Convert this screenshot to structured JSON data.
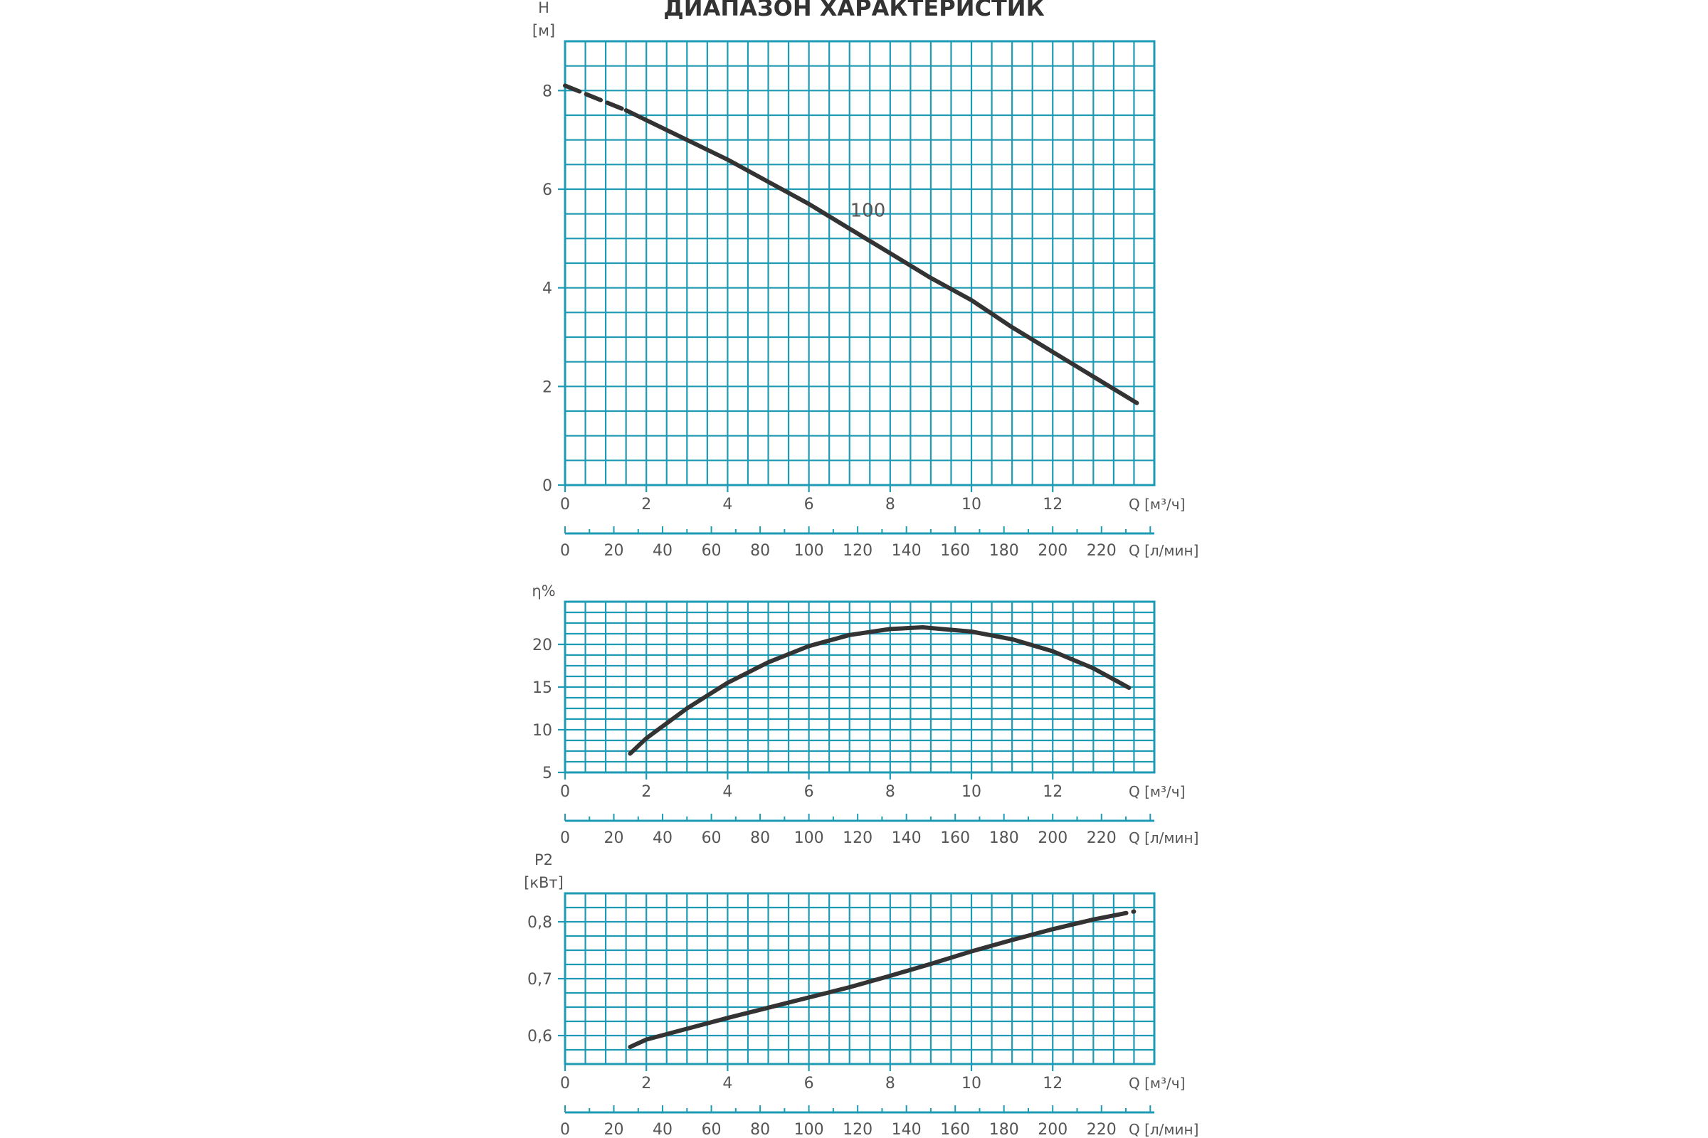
{
  "title": "ДИАПАЗОН ХАРАКТЕРИСТИК",
  "colors": {
    "grid": "#1e9bb4",
    "curve": "#333333",
    "text": "#555555"
  },
  "chart_data": [
    {
      "type": "line",
      "ylabel_line1": "H",
      "ylabel_line2": "[м]",
      "ylim": [
        0,
        9
      ],
      "yticks": [
        0,
        2,
        4,
        6,
        8
      ],
      "ytick_labels": [
        "0",
        "2",
        "4",
        "6",
        "8"
      ],
      "xlim": [
        0,
        14.5
      ],
      "xticks": [
        0,
        2,
        4,
        6,
        8,
        10,
        12
      ],
      "xtick_labels": [
        "0",
        "2",
        "4",
        "6",
        "8",
        "10",
        "12"
      ],
      "xunit_label": "Q [м³/ч]",
      "xticks2": [
        0,
        20,
        40,
        60,
        80,
        100,
        120,
        140,
        160,
        180,
        200,
        220
      ],
      "xticks2_labels": [
        "0",
        "20",
        "40",
        "60",
        "80",
        "100",
        "120",
        "140",
        "160",
        "180",
        "200",
        "220"
      ],
      "xunit2_label": "Q [л/мин]",
      "grid": true,
      "series": [
        {
          "name": "100",
          "x": [
            0,
            1.5,
            2,
            3,
            4,
            5,
            6,
            7,
            8,
            9,
            10,
            11,
            12,
            13,
            14.2
          ],
          "y": [
            8.1,
            7.6,
            7.4,
            7.0,
            6.6,
            6.15,
            5.7,
            5.2,
            4.7,
            4.2,
            3.75,
            3.2,
            2.7,
            2.2,
            1.6
          ],
          "dashed_start_until": 1.5,
          "dashed_end_from": 13.8
        }
      ],
      "curve_label": "100",
      "curve_label_at": [
        7.1,
        5.5
      ]
    },
    {
      "type": "line",
      "ylabel_line1": "η%",
      "ylim": [
        5,
        25
      ],
      "yticks": [
        5,
        10,
        15,
        20
      ],
      "ytick_labels": [
        "5",
        "10",
        "15",
        "20"
      ],
      "xlim": [
        0,
        14.5
      ],
      "xticks": [
        0,
        2,
        4,
        6,
        8,
        10,
        12
      ],
      "xtick_labels": [
        "0",
        "2",
        "4",
        "6",
        "8",
        "10",
        "12"
      ],
      "xunit_label": "Q [м³/ч]",
      "xticks2": [
        0,
        20,
        40,
        60,
        80,
        100,
        120,
        140,
        160,
        180,
        200,
        220
      ],
      "xticks2_labels": [
        "0",
        "20",
        "40",
        "60",
        "80",
        "100",
        "120",
        "140",
        "160",
        "180",
        "200",
        "220"
      ],
      "xunit2_label": "Q [л/мин]",
      "grid": true,
      "series": [
        {
          "name": "",
          "x": [
            1.6,
            2,
            3,
            4,
            5,
            6,
            7,
            8,
            8.8,
            10,
            11,
            12,
            13,
            14
          ],
          "y": [
            7.2,
            9,
            12.5,
            15.5,
            17.9,
            19.8,
            21.1,
            21.8,
            22.0,
            21.5,
            20.6,
            19.2,
            17.2,
            14.6
          ],
          "dashed_end_from": 13.6
        }
      ]
    },
    {
      "type": "line",
      "ylabel_line1": "P2",
      "ylabel_line2": "[кВт]",
      "ylim": [
        0.55,
        0.85
      ],
      "yticks": [
        0.6,
        0.7,
        0.8
      ],
      "ytick_labels": [
        "0,6",
        "0,7",
        "0,8"
      ],
      "xlim": [
        0,
        14.5
      ],
      "xticks": [
        0,
        2,
        4,
        6,
        8,
        10,
        12
      ],
      "xtick_labels": [
        "0",
        "2",
        "4",
        "6",
        "8",
        "10",
        "12"
      ],
      "xunit_label": "Q [м³/ч]",
      "xticks2": [
        0,
        20,
        40,
        60,
        80,
        100,
        120,
        140,
        160,
        180,
        200,
        220
      ],
      "xticks2_labels": [
        "0",
        "20",
        "40",
        "60",
        "80",
        "100",
        "120",
        "140",
        "160",
        "180",
        "200",
        "220"
      ],
      "xunit2_label": "Q [л/мин]",
      "grid": true,
      "series": [
        {
          "name": "",
          "x": [
            1.6,
            2,
            3,
            4,
            5,
            6,
            7,
            8,
            9,
            10,
            11,
            12,
            13,
            14
          ],
          "y": [
            0.58,
            0.593,
            0.612,
            0.631,
            0.649,
            0.667,
            0.685,
            0.705,
            0.726,
            0.748,
            0.768,
            0.787,
            0.804,
            0.818
          ],
          "dashed_end_from": 13.5
        }
      ]
    }
  ]
}
